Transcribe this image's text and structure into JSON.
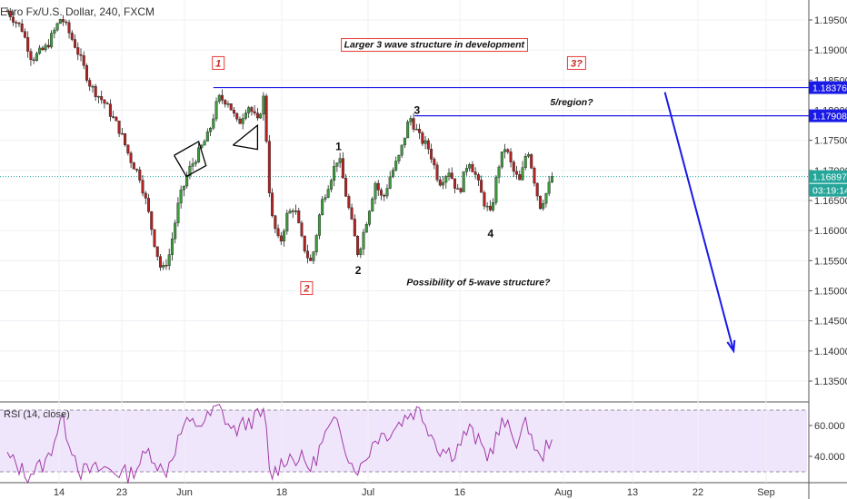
{
  "header": {
    "title": "Euro Fx/U.S. Dollar, 240, FXCM"
  },
  "rsi_panel": {
    "title": "RSI (14, close)"
  },
  "chart_data": [
    {
      "type": "candlestick",
      "title": "Euro Fx/U.S. Dollar, 240, FXCM",
      "symbol": "Euro Fx/U.S. Dollar",
      "interval": "240",
      "source": "FXCM",
      "ylim": [
        1.131,
        1.199
      ],
      "y_ticks": [
        "1.19500",
        "1.19000",
        "1.18500",
        "1.18000",
        "1.17500",
        "1.17000",
        "1.16500",
        "1.16000",
        "1.15500",
        "1.15000",
        "1.14500",
        "1.14000",
        "1.13500"
      ],
      "x_ticks": [
        "14",
        "23",
        "Jun",
        "18",
        "Jul",
        "16",
        "Aug",
        "13",
        "22",
        "Sep"
      ],
      "price_path": [
        {
          "x": 0,
          "y": 1.1965
        },
        {
          "x": 3,
          "y": 1.1935
        },
        {
          "x": 5,
          "y": 1.1885
        },
        {
          "x": 8,
          "y": 1.1905
        },
        {
          "x": 11,
          "y": 1.1955
        },
        {
          "x": 14,
          "y": 1.1905
        },
        {
          "x": 17,
          "y": 1.184
        },
        {
          "x": 20,
          "y": 1.181
        },
        {
          "x": 23,
          "y": 1.1765
        },
        {
          "x": 25,
          "y": 1.172
        },
        {
          "x": 27,
          "y": 1.169
        },
        {
          "x": 28.5,
          "y": 1.164
        },
        {
          "x": 30,
          "y": 1.158
        },
        {
          "x": 31.5,
          "y": 1.153
        },
        {
          "x": 33,
          "y": 1.156
        },
        {
          "x": 35,
          "y": 1.165
        },
        {
          "x": 37,
          "y": 1.17
        },
        {
          "x": 39,
          "y": 1.173
        },
        {
          "x": 41,
          "y": 1.176
        },
        {
          "x": 43,
          "y": 1.182
        },
        {
          "x": 45,
          "y": 1.1815
        },
        {
          "x": 47,
          "y": 1.1775
        },
        {
          "x": 49,
          "y": 1.181
        },
        {
          "x": 51,
          "y": 1.178
        },
        {
          "x": 52.5,
          "y": 1.183
        },
        {
          "x": 53,
          "y": 1.17
        },
        {
          "x": 54,
          "y": 1.162
        },
        {
          "x": 55.5,
          "y": 1.1575
        },
        {
          "x": 57,
          "y": 1.1625
        },
        {
          "x": 58.5,
          "y": 1.164
        },
        {
          "x": 60,
          "y": 1.1585
        },
        {
          "x": 61,
          "y": 1.156
        },
        {
          "x": 62,
          "y": 1.1545
        },
        {
          "x": 64,
          "y": 1.1645
        },
        {
          "x": 66,
          "y": 1.169
        },
        {
          "x": 67.5,
          "y": 1.1725
        },
        {
          "x": 69,
          "y": 1.166
        },
        {
          "x": 70.5,
          "y": 1.16
        },
        {
          "x": 71.5,
          "y": 1.156
        },
        {
          "x": 73,
          "y": 1.161
        },
        {
          "x": 75,
          "y": 1.168
        },
        {
          "x": 76.5,
          "y": 1.165
        },
        {
          "x": 78,
          "y": 1.169
        },
        {
          "x": 80,
          "y": 1.1725
        },
        {
          "x": 82,
          "y": 1.179
        },
        {
          "x": 84,
          "y": 1.1755
        },
        {
          "x": 86,
          "y": 1.1735
        },
        {
          "x": 88,
          "y": 1.168
        },
        {
          "x": 90,
          "y": 1.17
        },
        {
          "x": 92,
          "y": 1.166
        },
        {
          "x": 94,
          "y": 1.172
        },
        {
          "x": 95.5,
          "y": 1.169
        },
        {
          "x": 97,
          "y": 1.165
        },
        {
          "x": 98.5,
          "y": 1.1625
        },
        {
          "x": 100,
          "y": 1.1705
        },
        {
          "x": 101.5,
          "y": 1.174
        },
        {
          "x": 103,
          "y": 1.17
        },
        {
          "x": 104.5,
          "y": 1.168
        },
        {
          "x": 106,
          "y": 1.174
        },
        {
          "x": 107.5,
          "y": 1.168
        },
        {
          "x": 108.5,
          "y": 1.164
        },
        {
          "x": 110,
          "y": 1.1665
        },
        {
          "x": 111,
          "y": 1.169
        }
      ],
      "last_price": "1.16897",
      "countdown": "03:19:14",
      "hlines": [
        {
          "value": "1.18376",
          "y": 1.18376,
          "x_start": 42,
          "x_end": 145
        },
        {
          "value": "1.17908",
          "y": 1.17908,
          "x_start": 83,
          "x_end": 145
        }
      ],
      "wave_labels": [
        {
          "text": "1",
          "x": 43,
          "y": 1.1877,
          "boxed": true
        },
        {
          "text": "2",
          "x": 61,
          "y": 1.1503,
          "boxed": true
        },
        {
          "text": "3?",
          "x": 116,
          "y": 1.1877,
          "boxed": true
        },
        {
          "text": "1",
          "x": 67.5,
          "y": 1.174,
          "boxed": false
        },
        {
          "text": "2",
          "x": 71.5,
          "y": 1.1534,
          "boxed": false
        },
        {
          "text": "3",
          "x": 83.5,
          "y": 1.18,
          "boxed": false
        },
        {
          "text": "4",
          "x": 98.5,
          "y": 1.1595,
          "boxed": false
        }
      ],
      "annotations": [
        {
          "text": "Larger 3 wave structure in development",
          "x": 87,
          "y": 1.191,
          "boxed": true
        },
        {
          "text": "5/region?",
          "x": 115,
          "y": 1.1814,
          "boxed": false
        },
        {
          "text": "Possibility of 5-wave structure?",
          "x": 96,
          "y": 1.1515,
          "boxed": false
        }
      ],
      "projection_arrow": {
        "from": {
          "x": 134,
          "y": 1.183
        },
        "to": {
          "x": 148,
          "y": 1.14
        }
      },
      "triangle": [
        {
          "x": 34,
          "y": 1.1725
        },
        {
          "x": 39,
          "y": 1.1748
        },
        {
          "x": 40.5,
          "y": 1.1708
        },
        {
          "x": 36.5,
          "y": 1.169
        }
      ],
      "wedge": [
        {
          "x": 46,
          "y": 1.1742
        },
        {
          "x": 51,
          "y": 1.1775
        },
        {
          "x": 51,
          "y": 1.1735
        }
      ]
    },
    {
      "type": "line",
      "title": "RSI (14, close)",
      "ylim": [
        22,
        86
      ],
      "bands": [
        30,
        70
      ],
      "y_ticks": [
        "60.000",
        "40.000"
      ],
      "rsi_path": [
        {
          "x": 0,
          "y": 40
        },
        {
          "x": 4,
          "y": 28
        },
        {
          "x": 8,
          "y": 36
        },
        {
          "x": 11,
          "y": 65
        },
        {
          "x": 15,
          "y": 30
        },
        {
          "x": 20,
          "y": 32
        },
        {
          "x": 25,
          "y": 28
        },
        {
          "x": 29,
          "y": 44
        },
        {
          "x": 32,
          "y": 28
        },
        {
          "x": 36,
          "y": 60
        },
        {
          "x": 40,
          "y": 62
        },
        {
          "x": 43,
          "y": 72
        },
        {
          "x": 46,
          "y": 56
        },
        {
          "x": 50,
          "y": 64
        },
        {
          "x": 52.5,
          "y": 68
        },
        {
          "x": 53.5,
          "y": 26
        },
        {
          "x": 57,
          "y": 40
        },
        {
          "x": 60,
          "y": 38
        },
        {
          "x": 62,
          "y": 32
        },
        {
          "x": 65,
          "y": 55
        },
        {
          "x": 67.5,
          "y": 63
        },
        {
          "x": 70,
          "y": 35
        },
        {
          "x": 72,
          "y": 32
        },
        {
          "x": 75,
          "y": 52
        },
        {
          "x": 78,
          "y": 56
        },
        {
          "x": 82,
          "y": 68
        },
        {
          "x": 84,
          "y": 70
        },
        {
          "x": 88,
          "y": 45
        },
        {
          "x": 91,
          "y": 42
        },
        {
          "x": 94,
          "y": 58
        },
        {
          "x": 98,
          "y": 40
        },
        {
          "x": 101,
          "y": 62
        },
        {
          "x": 104,
          "y": 50
        },
        {
          "x": 106,
          "y": 62
        },
        {
          "x": 108.5,
          "y": 36
        },
        {
          "x": 111,
          "y": 55
        }
      ]
    }
  ]
}
